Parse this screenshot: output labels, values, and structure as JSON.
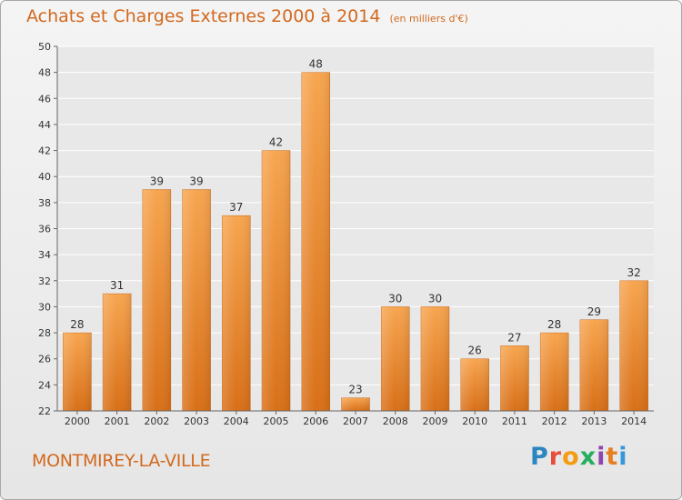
{
  "header": {
    "title": "Achats et Charges Externes 2000 à 2014",
    "unit": "(en milliers d'€)"
  },
  "footer": {
    "commune": "MONTMIREY-LA-VILLE",
    "logo_letters": [
      {
        "char": "P",
        "color": "#2e86c1"
      },
      {
        "char": "r",
        "color": "#e74c3c"
      },
      {
        "char": "o",
        "color": "#f39c12"
      },
      {
        "char": "x",
        "color": "#27ae60"
      },
      {
        "char": "i",
        "color": "#8e44ad"
      },
      {
        "char": "t",
        "color": "#e67e22"
      },
      {
        "char": "i",
        "color": "#3498db"
      }
    ]
  },
  "colors": {
    "bar_top": "#f7a54f",
    "bar_bottom": "#d86f17",
    "grid": "#ffffff",
    "axis": "#666666",
    "accent_text": "#d2691e"
  },
  "chart_data": {
    "type": "bar",
    "title": "Achats et Charges Externes 2000 à 2014",
    "categories": [
      "2000",
      "2001",
      "2002",
      "2003",
      "2004",
      "2005",
      "2006",
      "2007",
      "2008",
      "2009",
      "2010",
      "2011",
      "2012",
      "2013",
      "2014"
    ],
    "values": [
      28,
      31,
      39,
      39,
      37,
      42,
      48,
      23,
      30,
      30,
      26,
      27,
      28,
      29,
      32
    ],
    "ylim": [
      22,
      50
    ],
    "yticks": [
      22,
      24,
      26,
      28,
      30,
      32,
      34,
      36,
      38,
      40,
      42,
      44,
      46,
      48,
      50
    ],
    "grid": true,
    "xlabel": "",
    "ylabel": ""
  }
}
